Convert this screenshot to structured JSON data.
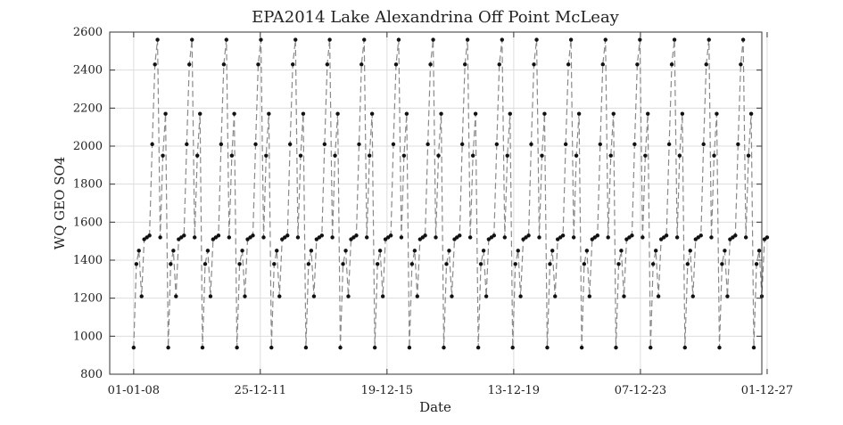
{
  "chart_data": {
    "type": "line",
    "title": "EPA2014 Lake Alexandrina Off Point McLeay",
    "xlabel": "Date",
    "ylabel": "WQ GEO SO4",
    "ylim": [
      800,
      2600
    ],
    "yticks": [
      800,
      1000,
      1200,
      1400,
      1600,
      1800,
      2000,
      2200,
      2400,
      2600
    ],
    "xlim": [
      "2007-04-01",
      "2027-10-01"
    ],
    "xticks": [
      {
        "date": "2008-01-01",
        "label": "01-01-08"
      },
      {
        "date": "2011-12-25",
        "label": "25-12-11"
      },
      {
        "date": "2015-12-19",
        "label": "19-12-15"
      },
      {
        "date": "2019-12-13",
        "label": "13-12-19"
      },
      {
        "date": "2023-12-07",
        "label": "07-12-23"
      },
      {
        "date": "2027-12-01",
        "label": "01-12-27"
      }
    ],
    "grid": true,
    "series_color": "#8a8a8a",
    "marker_color": "#111111",
    "cycle": {
      "start": "2008-01-01",
      "end": "2027-12-01",
      "months": 12,
      "values": [
        940,
        1380,
        1450,
        1210,
        1510,
        1520,
        1530,
        2010,
        2430,
        2560,
        1520,
        1950,
        2170
      ]
    }
  }
}
